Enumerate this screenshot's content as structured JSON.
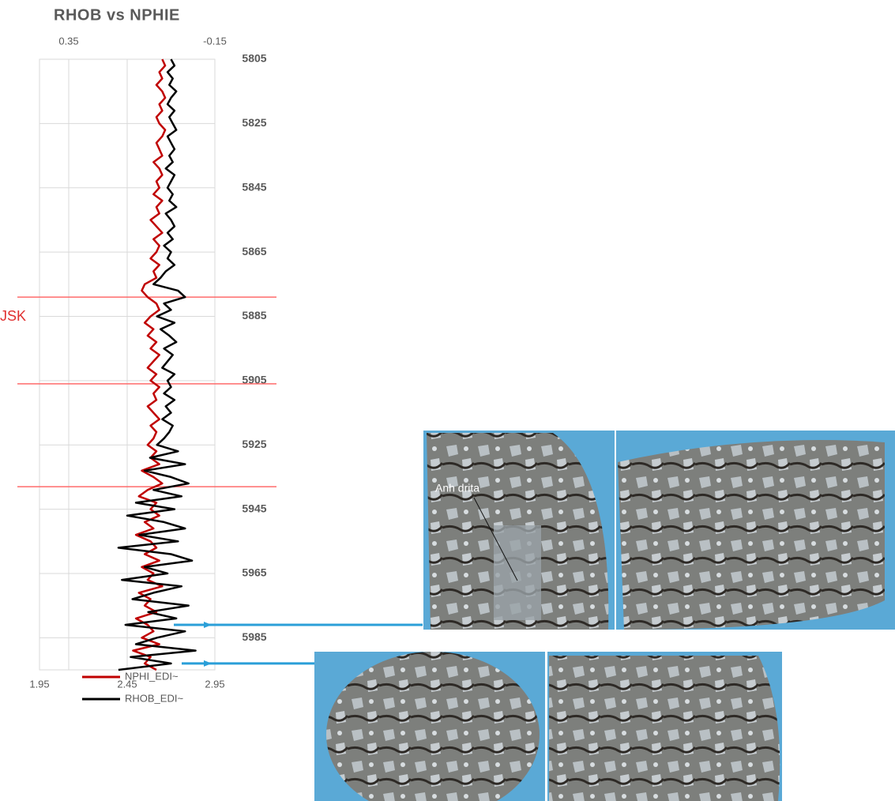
{
  "chart_data": {
    "type": "well-log",
    "title": "RHOB vs NPHIE",
    "y": [
      5805,
      5807,
      5809,
      5811,
      5813,
      5815,
      5817,
      5819,
      5821,
      5823,
      5825,
      5827,
      5829,
      5831,
      5833,
      5835,
      5837,
      5839,
      5841,
      5843,
      5845,
      5847,
      5849,
      5851,
      5853,
      5855,
      5857,
      5859,
      5861,
      5863,
      5865,
      5867,
      5869,
      5871,
      5873,
      5875,
      5877,
      5879,
      5881,
      5883,
      5885,
      5887,
      5889,
      5891,
      5893,
      5895,
      5897,
      5899,
      5901,
      5903,
      5905,
      5907,
      5909,
      5911,
      5913,
      5915,
      5917,
      5919,
      5921,
      5923,
      5925,
      5927,
      5929,
      5931,
      5933,
      5935,
      5937,
      5939,
      5941,
      5943,
      5945,
      5947,
      5949,
      5951,
      5953,
      5955,
      5957,
      5959,
      5961,
      5963,
      5965,
      5967,
      5969,
      5971,
      5973,
      5975,
      5977,
      5979,
      5981,
      5983,
      5985,
      5987,
      5989,
      5991,
      5993,
      5995
    ],
    "ylim": [
      5805,
      5995
    ],
    "yticks": [
      5805,
      5825,
      5845,
      5865,
      5885,
      5905,
      5925,
      5945,
      5965,
      5985
    ],
    "xlim": [
      0.45,
      -0.15
    ],
    "xticks": [
      0.35,
      -0.15
    ],
    "x2lim": [
      1.95,
      2.95
    ],
    "x2ticks": [
      1.95,
      2.45,
      2.95
    ],
    "grid": true,
    "series": [
      {
        "name": "NPHI_EDI~",
        "color": "#c00000",
        "axis": "x",
        "values": [
          0.03,
          0.02,
          0.04,
          0.03,
          0.05,
          0.03,
          0.02,
          0.04,
          0.03,
          0.05,
          0.04,
          0.02,
          0.03,
          0.05,
          0.04,
          0.03,
          0.06,
          0.04,
          0.03,
          0.05,
          0.04,
          0.06,
          0.03,
          0.05,
          0.04,
          0.07,
          0.05,
          0.03,
          0.06,
          0.04,
          0.05,
          0.07,
          0.04,
          0.06,
          0.05,
          0.09,
          0.1,
          0.08,
          0.05,
          0.04,
          0.07,
          0.09,
          0.06,
          0.08,
          0.05,
          0.07,
          0.04,
          0.06,
          0.08,
          0.05,
          0.07,
          0.04,
          0.06,
          0.05,
          0.08,
          0.06,
          0.04,
          0.07,
          0.05,
          0.06,
          0.08,
          0.05,
          0.07,
          0.04,
          0.1,
          0.06,
          0.03,
          0.08,
          0.11,
          0.05,
          0.07,
          0.04,
          0.09,
          0.06,
          0.12,
          0.07,
          0.05,
          0.09,
          0.04,
          0.1,
          0.06,
          0.08,
          0.03,
          0.11,
          0.07,
          0.09,
          0.05,
          0.12,
          0.08,
          0.06,
          0.1,
          0.04,
          0.13,
          0.07,
          0.09,
          0.05
        ]
      },
      {
        "name": "RHOB_EDI~",
        "color": "#000000",
        "axis": "x2",
        "values": [
          2.7,
          2.72,
          2.68,
          2.71,
          2.69,
          2.73,
          2.7,
          2.68,
          2.72,
          2.69,
          2.71,
          2.73,
          2.68,
          2.7,
          2.72,
          2.69,
          2.71,
          2.67,
          2.72,
          2.7,
          2.68,
          2.71,
          2.69,
          2.73,
          2.67,
          2.7,
          2.72,
          2.68,
          2.71,
          2.66,
          2.7,
          2.68,
          2.72,
          2.67,
          2.64,
          2.6,
          2.74,
          2.78,
          2.66,
          2.7,
          2.62,
          2.72,
          2.64,
          2.69,
          2.73,
          2.66,
          2.71,
          2.68,
          2.65,
          2.72,
          2.68,
          2.7,
          2.66,
          2.72,
          2.67,
          2.7,
          2.65,
          2.71,
          2.69,
          2.66,
          2.62,
          2.74,
          2.58,
          2.78,
          2.55,
          2.7,
          2.8,
          2.6,
          2.76,
          2.5,
          2.72,
          2.45,
          2.66,
          2.78,
          2.52,
          2.74,
          2.4,
          2.7,
          2.82,
          2.55,
          2.68,
          2.42,
          2.76,
          2.6,
          2.48,
          2.8,
          2.57,
          2.73,
          2.44,
          2.78,
          2.62,
          2.5,
          2.84,
          2.47,
          2.7,
          2.4
        ]
      }
    ],
    "formation_tops": [
      5879,
      5906,
      5938
    ],
    "formation_label": "JSK",
    "sample_depths": [
      5981,
      5993
    ],
    "image_label": "Anh drita"
  }
}
